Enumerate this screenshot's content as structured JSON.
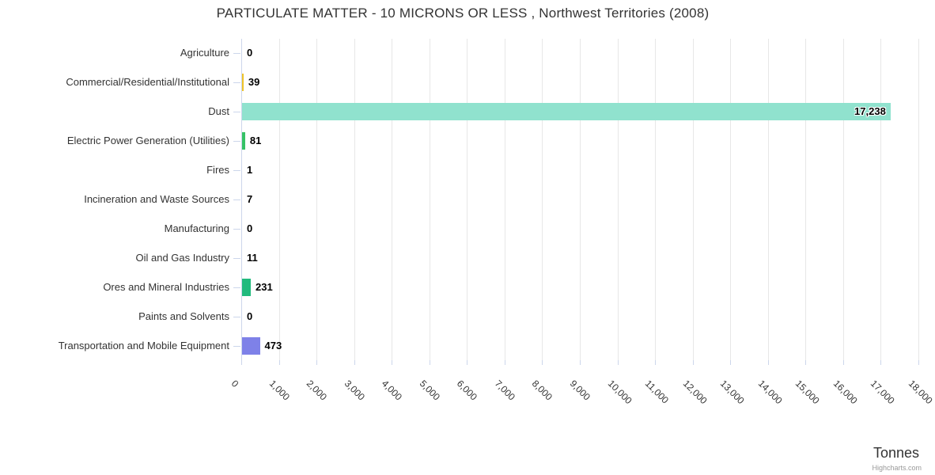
{
  "credits": "Highcharts.com",
  "chart_data": {
    "type": "bar",
    "orientation": "horizontal",
    "title": "PARTICULATE MATTER - 10 MICRONS OR LESS , Northwest Territories (2008)",
    "categories": [
      "Agriculture",
      "Commercial/Residential/Institutional",
      "Dust",
      "Electric Power Generation (Utilities)",
      "Fires",
      "Incineration and Waste Sources",
      "Manufacturing",
      "Oil and Gas Industry",
      "Ores and Mineral Industries",
      "Paints and Solvents",
      "Transportation and Mobile Equipment"
    ],
    "values": [
      0,
      39,
      17238,
      81,
      1,
      7,
      0,
      11,
      231,
      0,
      473
    ],
    "values_display": [
      "0",
      "39",
      "17,238",
      "81",
      "1",
      "7",
      "0",
      "11",
      "231",
      "0",
      "473"
    ],
    "value_label_inside": [
      false,
      false,
      true,
      false,
      false,
      false,
      false,
      false,
      false,
      false,
      false
    ],
    "bar_colors": [
      "#efc428",
      "#efc428",
      "#90e2ce",
      "#36c266",
      null,
      null,
      null,
      null,
      "#21ba7d",
      null,
      "#7e81e8"
    ],
    "xlabel": "Tonnes",
    "ylabel": "",
    "xlim": [
      0,
      18000
    ],
    "tick_interval": 1000,
    "tick_labels": [
      "0",
      "1,000",
      "2,000",
      "3,000",
      "4,000",
      "5,000",
      "6,000",
      "7,000",
      "8,000",
      "9,000",
      "10,000",
      "11,000",
      "12,000",
      "13,000",
      "14,000",
      "15,000",
      "16,000",
      "17,000",
      "18,000"
    ],
    "grid": true,
    "legend": false,
    "colors": {
      "grid_line": "#e7e7e7",
      "axis_line": "#ccd6eb",
      "label_text": "#333333",
      "value_text": "#000000"
    }
  }
}
